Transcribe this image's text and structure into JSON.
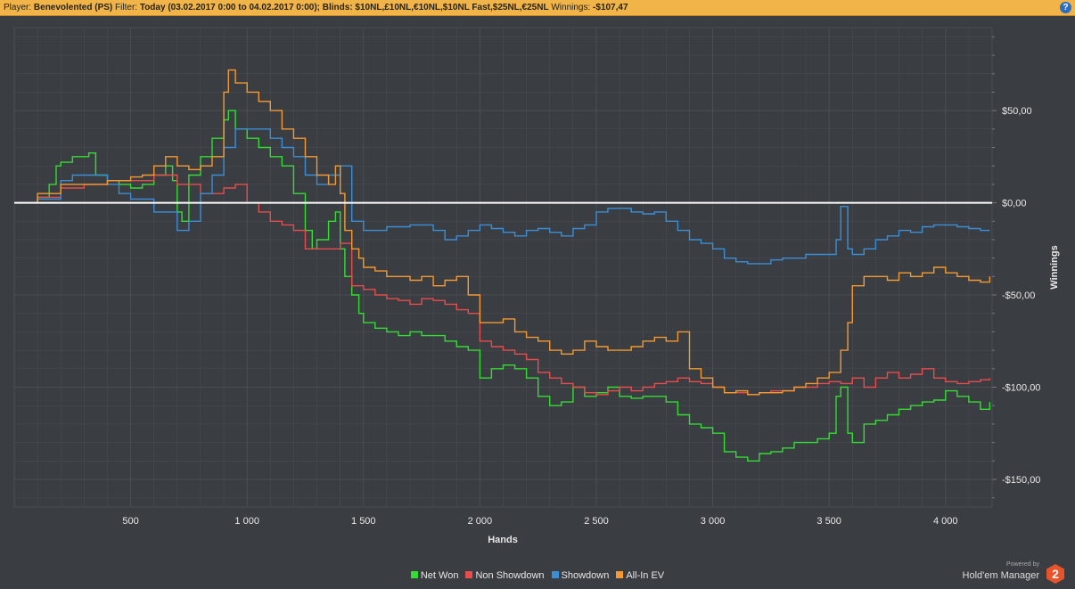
{
  "header": {
    "player_label": "Player:",
    "player": "Benevolented (PS)",
    "filter_label": "Filter:",
    "filter": "Today (03.02.2017 0:00 to 04.02.2017 0:00); Blinds: $10NL,£10NL,€10NL,$10NL Fast,$25NL,€25NL",
    "winnings_label": "Winnings:",
    "winnings": "-$107,47",
    "help_icon": "?"
  },
  "brand": {
    "powered": "Powered by",
    "name": "Hold'em Manager",
    "logo": "2"
  },
  "colors": {
    "background": "#3a3d42",
    "grid": "#4b4f55",
    "zero_line": "#ffffff",
    "Net Won": "#33dd33",
    "Non Showdown": "#e84c4c",
    "Showdown": "#3b8ed6",
    "All-In EV": "#f59a30"
  },
  "chart_data": {
    "type": "line",
    "xlabel": "Hands",
    "ylabel": "Winnings",
    "xlim": [
      0,
      4200
    ],
    "ylim": [
      -165,
      95
    ],
    "x_ticks": [
      500,
      1000,
      1500,
      2000,
      2500,
      3000,
      3500,
      4000
    ],
    "x_tick_labels": [
      "500",
      "1 000",
      "1 500",
      "2 000",
      "2 500",
      "3 000",
      "3 500",
      "4 000"
    ],
    "y_ticks": [
      50,
      0,
      -50,
      -100,
      -150
    ],
    "y_tick_labels": [
      "$50,00",
      "$0,00",
      "-$50,00",
      "-$100,00",
      "-$150,00"
    ],
    "legend_position": "bottom-center",
    "grid": true,
    "series": [
      {
        "name": "Net Won",
        "x": [
          0,
          100,
          150,
          180,
          200,
          250,
          320,
          350,
          400,
          450,
          500,
          550,
          600,
          650,
          680,
          700,
          720,
          750,
          800,
          850,
          900,
          920,
          950,
          1000,
          1050,
          1100,
          1150,
          1200,
          1250,
          1280,
          1300,
          1350,
          1380,
          1400,
          1420,
          1450,
          1480,
          1500,
          1550,
          1600,
          1650,
          1700,
          1750,
          1800,
          1850,
          1900,
          1950,
          2000,
          2050,
          2100,
          2150,
          2200,
          2250,
          2300,
          2350,
          2400,
          2450,
          2500,
          2550,
          2600,
          2650,
          2700,
          2750,
          2800,
          2850,
          2900,
          2950,
          3000,
          3050,
          3100,
          3150,
          3200,
          3250,
          3300,
          3350,
          3400,
          3450,
          3500,
          3530,
          3550,
          3580,
          3600,
          3650,
          3700,
          3750,
          3800,
          3850,
          3900,
          3950,
          4000,
          4050,
          4100,
          4150,
          4190
        ],
        "y": [
          0,
          3,
          10,
          20,
          22,
          25,
          27,
          15,
          12,
          10,
          8,
          10,
          15,
          20,
          12,
          -5,
          -10,
          15,
          25,
          35,
          45,
          50,
          40,
          35,
          30,
          25,
          20,
          5,
          -15,
          -25,
          -20,
          -10,
          -5,
          -25,
          -40,
          -50,
          -60,
          -65,
          -68,
          -70,
          -72,
          -70,
          -72,
          -72,
          -75,
          -78,
          -80,
          -95,
          -90,
          -88,
          -90,
          -95,
          -105,
          -110,
          -108,
          -100,
          -105,
          -103,
          -100,
          -105,
          -106,
          -105,
          -105,
          -108,
          -115,
          -120,
          -122,
          -125,
          -135,
          -138,
          -140,
          -136,
          -135,
          -133,
          -130,
          -130,
          -128,
          -125,
          -105,
          -100,
          -125,
          -130,
          -120,
          -118,
          -115,
          -112,
          -110,
          -108,
          -107,
          -102,
          -105,
          -108,
          -112,
          -108
        ]
      },
      {
        "name": "Non Showdown",
        "x": [
          0,
          100,
          200,
          300,
          400,
          500,
          600,
          700,
          800,
          900,
          950,
          1000,
          1050,
          1100,
          1150,
          1200,
          1250,
          1300,
          1350,
          1400,
          1450,
          1500,
          1550,
          1600,
          1650,
          1700,
          1750,
          1800,
          1850,
          1900,
          1950,
          2000,
          2050,
          2100,
          2150,
          2200,
          2250,
          2300,
          2350,
          2400,
          2450,
          2500,
          2550,
          2600,
          2650,
          2700,
          2750,
          2800,
          2850,
          2900,
          2950,
          3000,
          3050,
          3100,
          3150,
          3200,
          3250,
          3300,
          3350,
          3400,
          3450,
          3500,
          3550,
          3600,
          3650,
          3700,
          3750,
          3800,
          3850,
          3900,
          3950,
          4000,
          4050,
          4100,
          4150,
          4190
        ],
        "y": [
          0,
          3,
          8,
          10,
          12,
          12,
          15,
          10,
          5,
          8,
          10,
          0,
          -5,
          -10,
          -12,
          -15,
          -25,
          -25,
          -25,
          -22,
          -45,
          -47,
          -50,
          -52,
          -53,
          -55,
          -52,
          -53,
          -55,
          -58,
          -60,
          -75,
          -78,
          -80,
          -82,
          -85,
          -92,
          -95,
          -98,
          -100,
          -103,
          -104,
          -102,
          -100,
          -102,
          -100,
          -98,
          -97,
          -95,
          -97,
          -98,
          -100,
          -103,
          -103,
          -104,
          -103,
          -102,
          -102,
          -100,
          -100,
          -98,
          -97,
          -98,
          -95,
          -100,
          -95,
          -92,
          -95,
          -93,
          -90,
          -95,
          -97,
          -98,
          -97,
          -96,
          -95
        ]
      },
      {
        "name": "Showdown",
        "x": [
          0,
          100,
          200,
          250,
          350,
          400,
          450,
          500,
          600,
          650,
          700,
          750,
          800,
          850,
          900,
          950,
          1000,
          1050,
          1100,
          1150,
          1200,
          1250,
          1300,
          1350,
          1400,
          1450,
          1500,
          1600,
          1700,
          1800,
          1850,
          1900,
          1950,
          2000,
          2050,
          2100,
          2150,
          2200,
          2250,
          2300,
          2350,
          2400,
          2450,
          2500,
          2550,
          2600,
          2650,
          2700,
          2750,
          2800,
          2850,
          2900,
          2950,
          3000,
          3050,
          3100,
          3150,
          3200,
          3250,
          3300,
          3350,
          3400,
          3450,
          3500,
          3530,
          3550,
          3580,
          3600,
          3650,
          3700,
          3750,
          3800,
          3850,
          3900,
          3950,
          4000,
          4050,
          4100,
          4150,
          4190
        ],
        "y": [
          0,
          2,
          12,
          15,
          15,
          10,
          5,
          2,
          -5,
          -5,
          -15,
          -10,
          5,
          15,
          30,
          40,
          40,
          40,
          35,
          30,
          25,
          15,
          10,
          15,
          20,
          -10,
          -15,
          -13,
          -12,
          -15,
          -20,
          -18,
          -15,
          -12,
          -14,
          -16,
          -18,
          -15,
          -14,
          -16,
          -18,
          -14,
          -12,
          -5,
          -3,
          -3,
          -5,
          -6,
          -5,
          -10,
          -15,
          -20,
          -22,
          -25,
          -30,
          -32,
          -33,
          -33,
          -31,
          -30,
          -30,
          -28,
          -28,
          -28,
          -20,
          -2,
          -25,
          -28,
          -25,
          -20,
          -18,
          -15,
          -16,
          -13,
          -12,
          -12,
          -13,
          -14,
          -15,
          -15
        ]
      },
      {
        "name": "All-In EV",
        "x": [
          0,
          100,
          200,
          300,
          400,
          500,
          550,
          600,
          650,
          700,
          750,
          800,
          850,
          900,
          920,
          950,
          1000,
          1050,
          1100,
          1150,
          1200,
          1250,
          1300,
          1350,
          1380,
          1400,
          1420,
          1450,
          1480,
          1500,
          1550,
          1600,
          1650,
          1700,
          1750,
          1800,
          1850,
          1900,
          1950,
          2000,
          2050,
          2100,
          2150,
          2200,
          2250,
          2300,
          2350,
          2400,
          2450,
          2500,
          2550,
          2600,
          2650,
          2700,
          2750,
          2800,
          2850,
          2900,
          2950,
          3000,
          3050,
          3100,
          3150,
          3200,
          3250,
          3300,
          3350,
          3400,
          3450,
          3500,
          3550,
          3580,
          3600,
          3650,
          3700,
          3750,
          3800,
          3850,
          3900,
          3950,
          4000,
          4050,
          4100,
          4150,
          4190
        ],
        "y": [
          0,
          5,
          10,
          10,
          12,
          14,
          15,
          20,
          25,
          20,
          18,
          20,
          25,
          60,
          72,
          65,
          60,
          55,
          50,
          40,
          35,
          25,
          15,
          10,
          20,
          5,
          -15,
          -25,
          -30,
          -35,
          -37,
          -40,
          -40,
          -42,
          -40,
          -45,
          -42,
          -40,
          -50,
          -65,
          -65,
          -63,
          -70,
          -73,
          -75,
          -80,
          -82,
          -80,
          -75,
          -78,
          -80,
          -80,
          -78,
          -75,
          -73,
          -75,
          -70,
          -90,
          -95,
          -100,
          -103,
          -102,
          -104,
          -103,
          -103,
          -102,
          -100,
          -98,
          -95,
          -92,
          -80,
          -65,
          -45,
          -40,
          -40,
          -42,
          -38,
          -40,
          -38,
          -35,
          -38,
          -40,
          -42,
          -43,
          -40
        ]
      }
    ]
  }
}
